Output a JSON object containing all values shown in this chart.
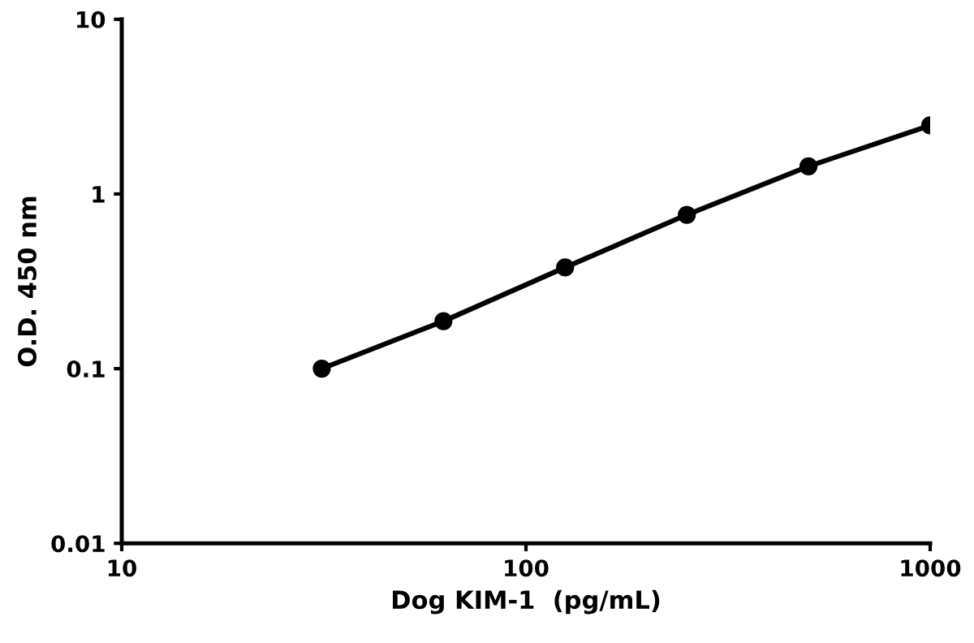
{
  "chart_data": {
    "type": "line",
    "xlabel": "Dog KIM-1  (pg/mL)",
    "ylabel": "O.D. 450 nm",
    "x": [
      31.25,
      62.5,
      125,
      250,
      500,
      1000
    ],
    "series": [
      {
        "color": "#000000",
        "values": [
          0.1,
          0.187,
          0.38,
          0.76,
          1.44,
          2.47
        ]
      }
    ],
    "log": "xy",
    "xlim": [
      10,
      1000
    ],
    "ylim": [
      0.01,
      10
    ],
    "xticks": [
      10,
      100,
      1000
    ],
    "yticks": [
      0.01,
      0.1,
      1,
      10
    ],
    "marker": "circle",
    "line_style": "solid",
    "grid": false,
    "legend": false
  }
}
